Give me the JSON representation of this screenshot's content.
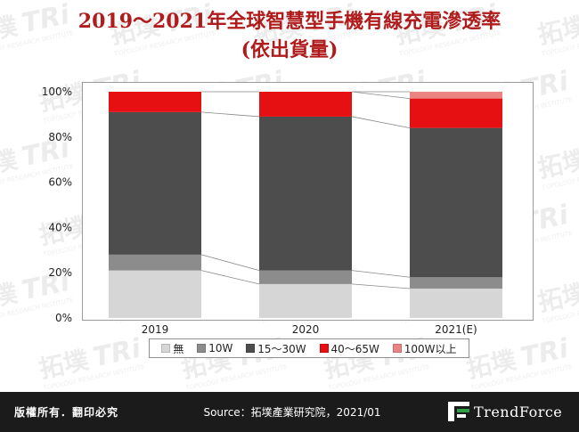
{
  "title": {
    "line1": "2019～2021年全球智慧型手機有線充電滲透率",
    "line2": "(依出貨量)"
  },
  "chart_data": {
    "type": "bar",
    "stacked": true,
    "categories": [
      "2019",
      "2020",
      "2021(E)"
    ],
    "y_ticks": [
      "0%",
      "20%",
      "40%",
      "60%",
      "80%",
      "100%"
    ],
    "ylim": [
      0,
      100
    ],
    "series": [
      {
        "name": "無",
        "color": "#d6d6d6",
        "values": [
          21,
          15,
          13
        ]
      },
      {
        "name": "10W",
        "color": "#8c8c8c",
        "values": [
          7,
          6,
          5
        ]
      },
      {
        "name": "15～30W",
        "color": "#4d4d4d",
        "values": [
          63,
          68,
          66
        ]
      },
      {
        "name": "40～65W",
        "color": "#e60f11",
        "values": [
          9,
          11,
          13
        ]
      },
      {
        "name": "100W以上",
        "color": "#ec8383",
        "values": [
          0,
          0,
          3
        ]
      }
    ],
    "grid": false,
    "legend_position": "bottom"
  },
  "footer": {
    "copyright": "版權所有．翻印必究",
    "source": "Source：拓墣產業研究院，2021/01",
    "brand": "TrendForce"
  },
  "watermark": {
    "cn": "拓墣",
    "tri": "TRi",
    "sub": "TOPOLOGY RESEARCH INSTITUTE"
  },
  "colors": {
    "title": "#b01b1b",
    "footer_bg": "#1b1b1b"
  }
}
